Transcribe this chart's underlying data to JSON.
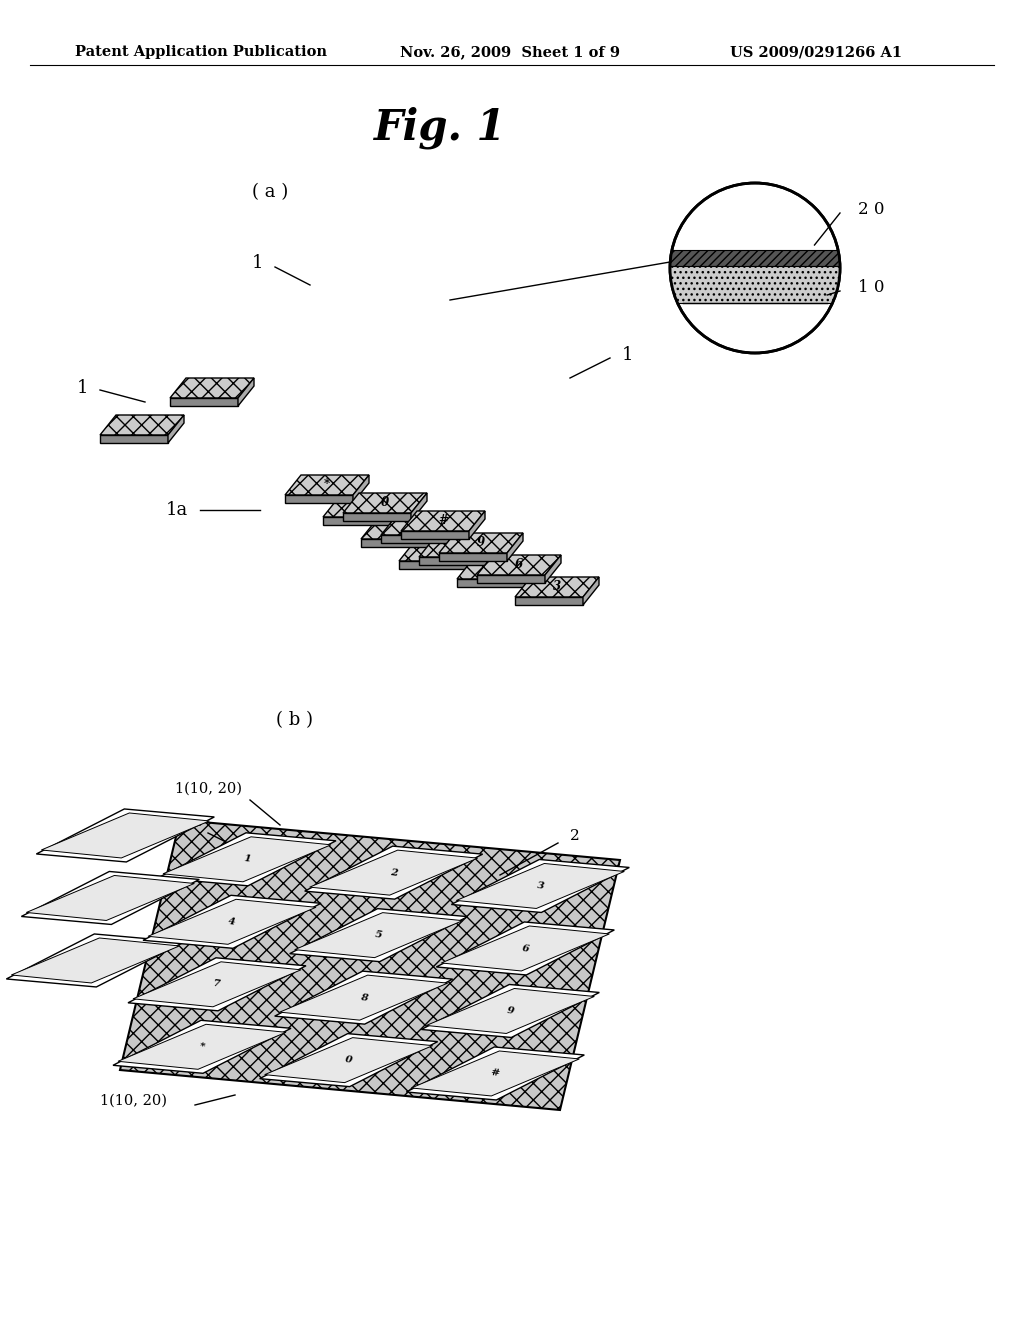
{
  "title": "Fig. 1",
  "header_left": "Patent Application Publication",
  "header_mid": "Nov. 26, 2009  Sheet 1 of 9",
  "header_right": "US 2009/0291266 A1",
  "label_a": "( a )",
  "label_b": "( b )",
  "bg_color": "#ffffff",
  "text_color": "#000000"
}
